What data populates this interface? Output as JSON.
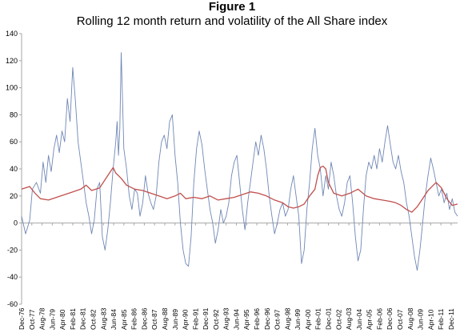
{
  "figure_label": "Figure 1",
  "chart_data": {
    "type": "line",
    "title": "Rolling 12 month return and volatility of the All Share index",
    "xlabel": "",
    "ylabel": "",
    "ylim": [
      -60,
      140
    ],
    "yticks": [
      -60,
      -40,
      -20,
      0,
      20,
      40,
      60,
      80,
      100,
      120,
      140
    ],
    "grid": false,
    "x_tick_labels": [
      "Dec-76",
      "Oct-77",
      "Aug-78",
      "Jun-79",
      "Apr-80",
      "Feb-81",
      "Dec-81",
      "Oct-82",
      "Aug-83",
      "Jun-84",
      "Apr-85",
      "Feb-86",
      "Dec-86",
      "Oct-87",
      "Aug-88",
      "Jun-89",
      "Apr-90",
      "Feb-91",
      "Dec-91",
      "Oct-92",
      "Aug-93",
      "Jun-94",
      "Apr-95",
      "Feb-96",
      "Dec-96",
      "Oct-97",
      "Aug-98",
      "Jun-99",
      "Apr-00",
      "Feb-01",
      "Dec-01",
      "Oct-02",
      "Aug-03",
      "Jun-04",
      "Apr-05",
      "Feb-06",
      "Dec-06",
      "Oct-07",
      "Aug-08",
      "Jun-09",
      "Apr-10",
      "Feb-11",
      "Dec-11"
    ],
    "x_start_index": 0,
    "colors": {
      "return": "#6f87b5",
      "volatility": "#c0504d",
      "axis": "#a6a6a6"
    },
    "series": [
      {
        "key": "return",
        "values": [
          [
            0,
            5
          ],
          [
            3,
            -8
          ],
          [
            6,
            2
          ],
          [
            8,
            25
          ],
          [
            11,
            30
          ],
          [
            14,
            22
          ],
          [
            16,
            45
          ],
          [
            18,
            30
          ],
          [
            20,
            50
          ],
          [
            22,
            38
          ],
          [
            24,
            55
          ],
          [
            26,
            65
          ],
          [
            28,
            52
          ],
          [
            30,
            68
          ],
          [
            32,
            60
          ],
          [
            34,
            92
          ],
          [
            36,
            75
          ],
          [
            38,
            115
          ],
          [
            40,
            90
          ],
          [
            42,
            60
          ],
          [
            44,
            45
          ],
          [
            46,
            30
          ],
          [
            48,
            15
          ],
          [
            50,
            5
          ],
          [
            52,
            -8
          ],
          [
            54,
            2
          ],
          [
            56,
            25
          ],
          [
            58,
            30
          ],
          [
            60,
            -10
          ],
          [
            62,
            -20
          ],
          [
            64,
            -5
          ],
          [
            66,
            15
          ],
          [
            68,
            40
          ],
          [
            70,
            60
          ],
          [
            71,
            75
          ],
          [
            72,
            50
          ],
          [
            73,
            70
          ],
          [
            74,
            126
          ],
          [
            75,
            90
          ],
          [
            76,
            55
          ],
          [
            78,
            40
          ],
          [
            80,
            20
          ],
          [
            82,
            10
          ],
          [
            84,
            25
          ],
          [
            86,
            22
          ],
          [
            88,
            5
          ],
          [
            90,
            15
          ],
          [
            92,
            35
          ],
          [
            94,
            22
          ],
          [
            96,
            15
          ],
          [
            98,
            10
          ],
          [
            100,
            20
          ],
          [
            102,
            45
          ],
          [
            104,
            60
          ],
          [
            106,
            65
          ],
          [
            108,
            55
          ],
          [
            110,
            75
          ],
          [
            112,
            80
          ],
          [
            114,
            50
          ],
          [
            116,
            30
          ],
          [
            118,
            0
          ],
          [
            120,
            -20
          ],
          [
            122,
            -30
          ],
          [
            124,
            -32
          ],
          [
            126,
            -10
          ],
          [
            128,
            30
          ],
          [
            130,
            55
          ],
          [
            132,
            68
          ],
          [
            134,
            58
          ],
          [
            136,
            40
          ],
          [
            138,
            25
          ],
          [
            140,
            10
          ],
          [
            142,
            0
          ],
          [
            144,
            -15
          ],
          [
            146,
            -5
          ],
          [
            148,
            10
          ],
          [
            150,
            0
          ],
          [
            152,
            5
          ],
          [
            154,
            15
          ],
          [
            156,
            35
          ],
          [
            158,
            45
          ],
          [
            160,
            50
          ],
          [
            162,
            30
          ],
          [
            164,
            10
          ],
          [
            166,
            -5
          ],
          [
            168,
            15
          ],
          [
            170,
            30
          ],
          [
            172,
            45
          ],
          [
            174,
            60
          ],
          [
            176,
            50
          ],
          [
            178,
            65
          ],
          [
            180,
            55
          ],
          [
            182,
            40
          ],
          [
            184,
            20
          ],
          [
            186,
            5
          ],
          [
            188,
            -8
          ],
          [
            190,
            0
          ],
          [
            192,
            10
          ],
          [
            194,
            15
          ],
          [
            196,
            5
          ],
          [
            198,
            10
          ],
          [
            200,
            25
          ],
          [
            202,
            35
          ],
          [
            204,
            20
          ],
          [
            206,
            5
          ],
          [
            208,
            -30
          ],
          [
            210,
            -20
          ],
          [
            212,
            10
          ],
          [
            214,
            30
          ],
          [
            216,
            55
          ],
          [
            218,
            70
          ],
          [
            220,
            50
          ],
          [
            222,
            40
          ],
          [
            224,
            20
          ],
          [
            226,
            35
          ],
          [
            228,
            25
          ],
          [
            230,
            45
          ],
          [
            232,
            35
          ],
          [
            234,
            20
          ],
          [
            236,
            10
          ],
          [
            238,
            5
          ],
          [
            240,
            15
          ],
          [
            242,
            30
          ],
          [
            244,
            35
          ],
          [
            246,
            15
          ],
          [
            248,
            -10
          ],
          [
            250,
            -28
          ],
          [
            252,
            -20
          ],
          [
            254,
            10
          ],
          [
            256,
            35
          ],
          [
            258,
            45
          ],
          [
            260,
            40
          ],
          [
            262,
            50
          ],
          [
            264,
            40
          ],
          [
            266,
            55
          ],
          [
            268,
            45
          ],
          [
            270,
            60
          ],
          [
            272,
            72
          ],
          [
            274,
            58
          ],
          [
            276,
            45
          ],
          [
            278,
            40
          ],
          [
            280,
            50
          ],
          [
            282,
            38
          ],
          [
            284,
            30
          ],
          [
            286,
            15
          ],
          [
            288,
            5
          ],
          [
            290,
            -10
          ],
          [
            292,
            -25
          ],
          [
            294,
            -35
          ],
          [
            296,
            -20
          ],
          [
            298,
            0
          ],
          [
            300,
            20
          ],
          [
            302,
            35
          ],
          [
            304,
            48
          ],
          [
            306,
            40
          ],
          [
            308,
            30
          ],
          [
            310,
            20
          ],
          [
            312,
            25
          ],
          [
            314,
            15
          ],
          [
            316,
            22
          ],
          [
            318,
            10
          ],
          [
            320,
            18
          ],
          [
            322,
            8
          ],
          [
            324,
            5
          ]
        ]
      },
      {
        "key": "volatility",
        "values": [
          [
            0,
            25
          ],
          [
            6,
            27
          ],
          [
            10,
            22
          ],
          [
            14,
            18
          ],
          [
            20,
            17
          ],
          [
            26,
            19
          ],
          [
            32,
            21
          ],
          [
            38,
            23
          ],
          [
            44,
            25
          ],
          [
            48,
            28
          ],
          [
            52,
            24
          ],
          [
            58,
            26
          ],
          [
            62,
            32
          ],
          [
            66,
            38
          ],
          [
            68,
            41
          ],
          [
            70,
            37
          ],
          [
            74,
            33
          ],
          [
            78,
            28
          ],
          [
            84,
            25
          ],
          [
            90,
            24
          ],
          [
            96,
            22
          ],
          [
            102,
            20
          ],
          [
            108,
            18
          ],
          [
            114,
            20
          ],
          [
            118,
            22
          ],
          [
            122,
            18
          ],
          [
            128,
            19
          ],
          [
            134,
            18
          ],
          [
            140,
            20
          ],
          [
            146,
            17
          ],
          [
            152,
            18
          ],
          [
            158,
            19
          ],
          [
            164,
            21
          ],
          [
            170,
            23
          ],
          [
            176,
            22
          ],
          [
            182,
            20
          ],
          [
            188,
            17
          ],
          [
            194,
            15
          ],
          [
            198,
            12
          ],
          [
            202,
            11
          ],
          [
            206,
            12
          ],
          [
            210,
            14
          ],
          [
            214,
            20
          ],
          [
            218,
            25
          ],
          [
            220,
            35
          ],
          [
            222,
            41
          ],
          [
            224,
            42
          ],
          [
            226,
            40
          ],
          [
            228,
            30
          ],
          [
            232,
            22
          ],
          [
            238,
            20
          ],
          [
            244,
            22
          ],
          [
            250,
            25
          ],
          [
            256,
            20
          ],
          [
            262,
            18
          ],
          [
            268,
            17
          ],
          [
            274,
            16
          ],
          [
            278,
            15
          ],
          [
            282,
            13
          ],
          [
            286,
            10
          ],
          [
            290,
            8
          ],
          [
            294,
            12
          ],
          [
            298,
            18
          ],
          [
            302,
            24
          ],
          [
            306,
            28
          ],
          [
            308,
            30
          ],
          [
            312,
            26
          ],
          [
            316,
            18
          ],
          [
            320,
            13
          ],
          [
            324,
            14
          ]
        ]
      }
    ]
  }
}
